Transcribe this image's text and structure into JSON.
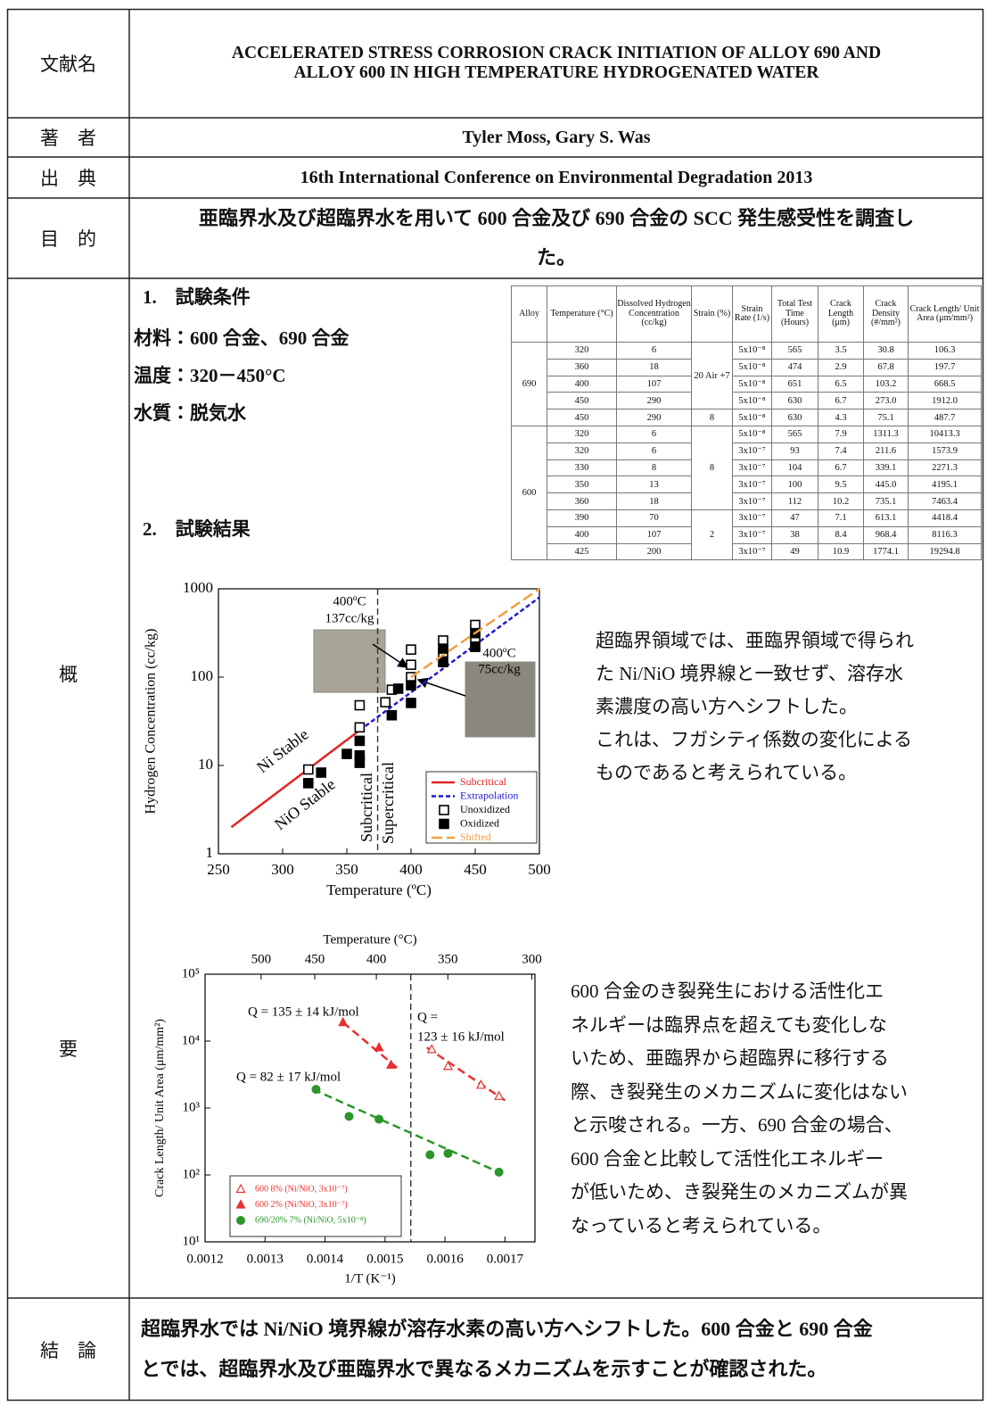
{
  "title_row": {
    "label": "文献名",
    "lines": [
      "ACCELERATED STRESS CORROSION CRACK INITIATION OF ALLOY 690 AND",
      "ALLOY 600 IN HIGH TEMPERATURE HYDROGENATED WATER"
    ]
  },
  "authors_row": {
    "label": "著　者",
    "text": "Tyler Moss, Gary S. Was"
  },
  "source_row": {
    "label": "出　典",
    "text": "16th International Conference on Environmental Degradation 2013"
  },
  "purpose_row": {
    "label": "目　的",
    "lines": [
      "亜臨界水及び超臨界水を用いて 600 合金及び 690 合金の SCC 発生感受性を調査し",
      "た。"
    ]
  },
  "summary_row": {
    "label": [
      "概",
      "要"
    ],
    "conditions": {
      "heading": "1.　試験条件",
      "lines": [
        "材料：600 合金、690 合金",
        "温度：320－450°C",
        "水質：脱気水"
      ]
    },
    "results_heading": "2.　試験結果",
    "table": {
      "header": [
        "Alloy",
        "Temperature (°C)",
        "Dissolved Hydrogen Concentration (cc/kg)",
        "Strain (%)",
        "Strain Rate (1/s)",
        "Total Test Time (Hours)",
        "Crack Length (μm)",
        "Crack Density (#/mm²)",
        "Crack Length/ Unit Area (μm/mm²)"
      ],
      "groups": [
        {
          "alloy": "690",
          "strain_groups": [
            {
              "strain": "20 Air +7",
              "rows": [
                [
                  "320",
                  "6",
                  "5x10⁻⁸",
                  "565",
                  "3.5",
                  "30.8",
                  "106.3"
                ],
                [
                  "360",
                  "18",
                  "5x10⁻⁸",
                  "474",
                  "2.9",
                  "67.8",
                  "197.7"
                ],
                [
                  "400",
                  "107",
                  "5x10⁻⁸",
                  "651",
                  "6.5",
                  "103.2",
                  "668.5"
                ],
                [
                  "450",
                  "290",
                  "5x10⁻⁸",
                  "630",
                  "6.7",
                  "273.0",
                  "1912.0"
                ]
              ]
            },
            {
              "strain": "8",
              "rows": [
                [
                  "450",
                  "290",
                  "5x10⁻⁸",
                  "630",
                  "4.3",
                  "75.1",
                  "487.7"
                ]
              ]
            }
          ]
        },
        {
          "alloy": "600",
          "strain_groups": [
            {
              "strain": "8",
              "rows": [
                [
                  "320",
                  "6",
                  "5x10⁻⁸",
                  "565",
                  "7.9",
                  "1311.3",
                  "10413.3"
                ],
                [
                  "320",
                  "6",
                  "3x10⁻⁷",
                  "93",
                  "7.4",
                  "211.6",
                  "1573.9"
                ],
                [
                  "330",
                  "8",
                  "3x10⁻⁷",
                  "104",
                  "6.7",
                  "339.1",
                  "2271.3"
                ],
                [
                  "350",
                  "13",
                  "3x10⁻⁷",
                  "100",
                  "9.5",
                  "445.0",
                  "4195.1"
                ],
                [
                  "360",
                  "18",
                  "3x10⁻⁷",
                  "112",
                  "10.2",
                  "735.1",
                  "7463.4"
                ]
              ]
            },
            {
              "strain": "2",
              "rows": [
                [
                  "390",
                  "70",
                  "3x10⁻⁷",
                  "47",
                  "7.1",
                  "613.1",
                  "4418.4"
                ],
                [
                  "400",
                  "107",
                  "3x10⁻⁷",
                  "38",
                  "8.4",
                  "968.4",
                  "8116.3"
                ],
                [
                  "425",
                  "200",
                  "3x10⁻⁷",
                  "49",
                  "10.9",
                  "1774.1",
                  "19294.8"
                ]
              ]
            }
          ]
        }
      ]
    },
    "figure1": {
      "type": "scatter",
      "xlabel": "Temperature (ºC)",
      "ylabel": "Hydrogen Concentration (cc/kg)",
      "xlim": [
        250,
        500
      ],
      "xticks": [
        250,
        300,
        350,
        400,
        450,
        500
      ],
      "ylim": [
        1,
        1000
      ],
      "yticks": [
        1,
        10,
        100,
        1000
      ],
      "log_y": true,
      "vlines": [
        374
      ],
      "annotations": [
        "Ni Stable",
        "NiO Stable",
        "Subcritical",
        "Supercritical"
      ],
      "photo_labels": [
        [
          "400ºC",
          "137cc/kg"
        ],
        [
          "400ºC",
          "75cc/kg"
        ]
      ],
      "series": [
        {
          "name": "Subcritical",
          "color": "#e02424",
          "style": "solid",
          "x": [
            260,
            360
          ],
          "values": [
            2,
            25
          ]
        },
        {
          "name": "Extrapolation",
          "color": "#1c1cd0",
          "style": "dotted",
          "x": [
            360,
            500
          ],
          "values": [
            25,
            800
          ]
        },
        {
          "name": "Unoxidized",
          "color": "#000000",
          "marker": "open-square",
          "x": [
            320,
            360,
            360,
            380,
            385,
            400,
            400,
            400,
            425,
            425,
            450,
            450
          ],
          "values": [
            9,
            48,
            27,
            52,
            72,
            205,
            138,
            100,
            260,
            190,
            390,
            280
          ]
        },
        {
          "name": "Oxidized",
          "color": "#000000",
          "marker": "filled-square",
          "x": [
            320,
            330,
            350,
            360,
            360,
            360,
            385,
            390,
            400,
            400,
            425,
            425,
            450,
            450
          ],
          "values": [
            6.3,
            8.3,
            13.5,
            19,
            13,
            10.7,
            37,
            74,
            81,
            51,
            148,
            210,
            220,
            315
          ]
        },
        {
          "name": "Shifted",
          "color": "#f0a040",
          "style": "dashed",
          "x": [
            400,
            500
          ],
          "values": [
            100,
            1000
          ]
        }
      ]
    },
    "figure1_text": [
      "超臨界領域では、亜臨界領域で得られ",
      "た Ni/NiO 境界線と一致せず、溶存水",
      "素濃度の高い方へシフトした。",
      "これは、フガシティ係数の変化による",
      "ものであると考えられている。"
    ],
    "figure2": {
      "type": "scatter",
      "xlabel": "1/T (K⁻¹)",
      "ylabel": "Crack Length/ Unit Area (μm/mm²)",
      "x2label": "Temperature (°C)",
      "xlim": [
        0.0012,
        0.00175
      ],
      "xticks": [
        0.0012,
        0.0013,
        0.0014,
        0.0015,
        0.0016,
        0.0017
      ],
      "x2ticks": [
        500,
        450,
        400,
        350,
        300
      ],
      "ylim": [
        10,
        100000
      ],
      "log_y": true,
      "yticks": [
        {
          "value": 10,
          "label": "10¹"
        },
        {
          "value": 100,
          "label": "10²"
        },
        {
          "value": 1000,
          "label": "10³"
        },
        {
          "value": 10000,
          "label": "10⁴"
        },
        {
          "value": 100000,
          "label": "10⁵"
        }
      ],
      "vlines": [
        0.001543
      ],
      "series": [
        {
          "name": "600 8% (Ni/NiO, 3x10⁻⁷)",
          "color": "#e83030",
          "marker": "open-triangle",
          "x": [
            0.001578,
            0.001605,
            0.00166,
            0.00169
          ],
          "values": [
            7500,
            4200,
            2200,
            1500
          ]
        },
        {
          "name": "600 2% (Ni/NiO, 3x10⁻⁷)",
          "color": "#e83030",
          "marker": "filled-triangle",
          "x": [
            0.00143,
            0.00149,
            0.00151
          ],
          "values": [
            19000,
            8000,
            4400
          ]
        },
        {
          "name": "690/20% 7% (Ni/NiO, 5x10⁻⁸)",
          "color": "#2a962a",
          "marker": "filled-circle",
          "x": [
            0.001385,
            0.00144,
            0.00149,
            0.001575,
            0.001605,
            0.00169
          ],
          "values": [
            1900,
            750,
            680,
            200,
            210,
            110
          ]
        }
      ],
      "fits": [
        {
          "label": [
            "Q = 135 ± 14 kJ/mol"
          ],
          "color": "#e83030",
          "x": [
            0.00143,
            0.00152
          ],
          "values": [
            19000,
            4000
          ]
        },
        {
          "label": [
            "Q =",
            "123 ± 16 kJ/mol"
          ],
          "color": "#e83030",
          "x": [
            0.00157,
            0.0017
          ],
          "values": [
            8000,
            1300
          ]
        },
        {
          "label": [
            "Q = 82 ± 17 kJ/mol"
          ],
          "color": "#2a962a",
          "x": [
            0.00138,
            0.0017
          ],
          "values": [
            1900,
            100
          ]
        }
      ]
    },
    "figure2_text": [
      "600 合金のき裂発生における活性化エ",
      "ネルギーは臨界点を超えても変化しな",
      "いため、亜臨界から超臨界に移行する",
      "際、き裂発生のメカニズムに変化はない",
      "と示唆される。一方、690 合金の場合、",
      "600 合金と比較して活性化エネルギー",
      "が低いため、き裂発生のメカニズムが異",
      "なっていると考えられている。"
    ]
  },
  "conclusion_row": {
    "label": "結　論",
    "lines": [
      "超臨界水では Ni/NiO 境界線が溶存水素の高い方へシフトした。600 合金と 690 合金",
      "とでは、超臨界水及び亜臨界水で異なるメカニズムを示すことが確認された。"
    ]
  }
}
